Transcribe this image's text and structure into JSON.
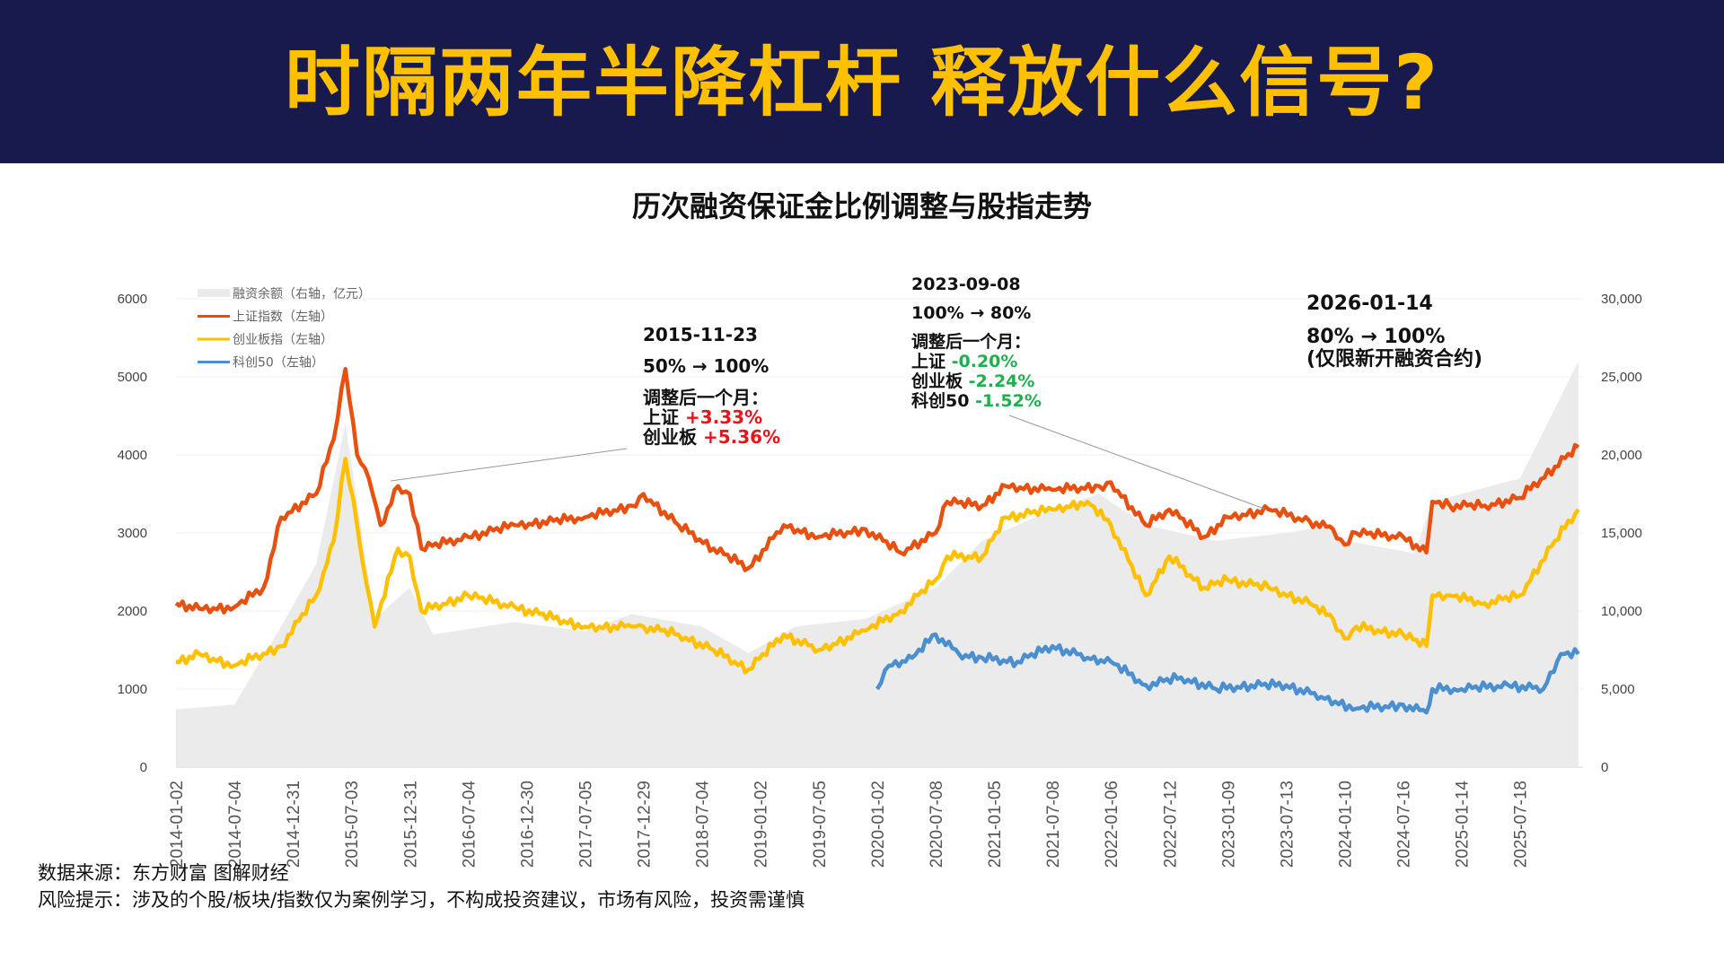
{
  "header": {
    "title": "时隔两年半降杠杆  释放什么信号?"
  },
  "chart_data": {
    "type": "line",
    "title": "历次融资保证金比例调整与股指走势",
    "left_axis": {
      "ticks": [
        "0",
        "1000",
        "2000",
        "3000",
        "4000",
        "5000",
        "6000"
      ],
      "range": [
        0,
        6000
      ]
    },
    "right_axis": {
      "ticks": [
        "0",
        "5,000",
        "10,000",
        "15,000",
        "20,000",
        "25,000",
        "30,000"
      ],
      "range": [
        0,
        30000
      ]
    },
    "x_range": [
      2014.0,
      2026.04
    ],
    "x_ticks": [
      "2014-01-02",
      "2014-07-04",
      "2014-12-31",
      "2015-07-03",
      "2015-12-31",
      "2016-07-04",
      "2016-12-30",
      "2017-07-05",
      "2017-12-29",
      "2018-07-04",
      "2019-01-02",
      "2019-07-05",
      "2020-01-02",
      "2020-07-08",
      "2021-01-05",
      "2021-07-08",
      "2022-01-06",
      "2022-07-12",
      "2023-01-09",
      "2023-07-13",
      "2024-01-10",
      "2024-07-16",
      "2025-01-14",
      "2025-07-18"
    ],
    "legend": [
      "融资余额（右轴，亿元）",
      "上证指数（左轴）",
      "创业板指（左轴）",
      "科创50（左轴）"
    ],
    "legend_position": "top-left",
    "colors": {
      "margin": "#ebebeb",
      "sse": "#e8500f",
      "chinext": "#ffc000",
      "star50": "#4a8fd0"
    },
    "series": [
      {
        "name": "融资余额",
        "axis": "right",
        "type": "area",
        "x": [
          2014.0,
          2014.5,
          2014.9,
          2015.2,
          2015.45,
          2015.7,
          2016.0,
          2016.2,
          2016.9,
          2017.5,
          2017.9,
          2018.5,
          2018.9,
          2019.3,
          2019.9,
          2020.5,
          2020.9,
          2021.5,
          2021.9,
          2022.3,
          2022.9,
          2023.5,
          2023.9,
          2024.0,
          2024.6,
          2024.75,
          2025.0,
          2025.5,
          2025.8,
          2026.0
        ],
        "values": [
          3700,
          4000,
          9000,
          13000,
          22000,
          9500,
          11500,
          8500,
          9300,
          8700,
          9800,
          9000,
          7300,
          9000,
          9500,
          11500,
          14500,
          16500,
          17500,
          15500,
          14500,
          15000,
          15500,
          14500,
          13700,
          17000,
          17500,
          18500,
          23000,
          26000
        ]
      },
      {
        "name": "上证指数",
        "axis": "left",
        "x": [
          2014.0,
          2014.2,
          2014.5,
          2014.75,
          2014.9,
          2015.2,
          2015.35,
          2015.45,
          2015.55,
          2015.65,
          2015.75,
          2015.9,
          2016.0,
          2016.1,
          2016.5,
          2016.9,
          2017.5,
          2017.9,
          2018.0,
          2018.3,
          2018.6,
          2018.9,
          2019.2,
          2019.5,
          2019.9,
          2020.2,
          2020.5,
          2020.6,
          2020.9,
          2021.1,
          2021.5,
          2021.9,
          2022.0,
          2022.3,
          2022.5,
          2022.8,
          2023.0,
          2023.35,
          2023.7,
          2023.9,
          2024.0,
          2024.1,
          2024.5,
          2024.7,
          2024.75,
          2024.9,
          2025.2,
          2025.5,
          2025.8,
          2026.0
        ],
        "values": [
          2100,
          2030,
          2050,
          2300,
          3200,
          3500,
          4200,
          5100,
          4000,
          3700,
          3100,
          3600,
          3500,
          2800,
          2950,
          3100,
          3200,
          3350,
          3500,
          3100,
          2800,
          2550,
          3100,
          2950,
          3050,
          2750,
          3000,
          3400,
          3350,
          3600,
          3550,
          3600,
          3650,
          3100,
          3300,
          2950,
          3200,
          3300,
          3150,
          3050,
          2850,
          3000,
          2950,
          2750,
          3400,
          3350,
          3350,
          3450,
          3850,
          4100
        ]
      },
      {
        "name": "创业板指",
        "axis": "left",
        "x": [
          2014.0,
          2014.2,
          2014.5,
          2014.9,
          2015.2,
          2015.35,
          2015.45,
          2015.55,
          2015.6,
          2015.7,
          2015.9,
          2016.0,
          2016.1,
          2016.5,
          2016.9,
          2017.5,
          2017.9,
          2018.0,
          2018.3,
          2018.6,
          2018.9,
          2019.2,
          2019.5,
          2019.9,
          2020.2,
          2020.5,
          2020.6,
          2020.9,
          2021.1,
          2021.5,
          2021.8,
          2022.0,
          2022.3,
          2022.5,
          2022.8,
          2023.0,
          2023.35,
          2023.7,
          2023.9,
          2024.0,
          2024.1,
          2024.5,
          2024.7,
          2024.75,
          2024.9,
          2025.2,
          2025.5,
          2025.8,
          2026.0
        ],
        "values": [
          1350,
          1450,
          1300,
          1550,
          2200,
          2900,
          3950,
          3100,
          2600,
          1800,
          2800,
          2700,
          2000,
          2200,
          2050,
          1800,
          1800,
          1800,
          1700,
          1500,
          1250,
          1700,
          1500,
          1750,
          2000,
          2400,
          2700,
          2700,
          3200,
          3300,
          3400,
          3100,
          2200,
          2700,
          2300,
          2400,
          2300,
          2100,
          1900,
          1650,
          1800,
          1700,
          1550,
          2200,
          2200,
          2100,
          2200,
          2900,
          3300
        ]
      },
      {
        "name": "科创50",
        "axis": "left",
        "x": [
          2020.0,
          2020.1,
          2020.3,
          2020.5,
          2020.7,
          2020.9,
          2021.2,
          2021.5,
          2021.8,
          2022.0,
          2022.3,
          2022.6,
          2022.9,
          2023.2,
          2023.5,
          2023.8,
          2024.1,
          2024.5,
          2024.7,
          2024.75,
          2025.0,
          2025.4,
          2025.7,
          2025.85,
          2026.0
        ],
        "values": [
          1000,
          1300,
          1400,
          1700,
          1450,
          1400,
          1350,
          1550,
          1400,
          1350,
          1050,
          1150,
          1000,
          1050,
          1050,
          900,
          750,
          800,
          700,
          1000,
          1000,
          1050,
          1000,
          1450,
          1450
        ]
      }
    ]
  },
  "annotations": [
    {
      "date": "2015-11-23",
      "change": "50% → 100%",
      "heading": "调整后一个月：",
      "items": [
        {
          "label": "上证",
          "value": "+3.33%"
        },
        {
          "label": "创业板",
          "value": "+5.36%"
        }
      ]
    },
    {
      "date": "2023-09-08",
      "change": "100% → 80%",
      "heading": "调整后一个月：",
      "items": [
        {
          "label": "上证",
          "value": "-0.20%"
        },
        {
          "label": "创业板",
          "value": "-2.24%"
        },
        {
          "label": "科创50",
          "value": "-1.52%"
        }
      ]
    },
    {
      "date": "2026-01-14",
      "change": "80% → 100%",
      "note": "(仅限新开融资合约)"
    }
  ],
  "footer": {
    "source": "数据来源：东方财富 图解财经",
    "risk": "风险提示：涉及的个股/板块/指数仅为案例学习，不构成投资建议，市场有风险，投资需谨慎"
  }
}
